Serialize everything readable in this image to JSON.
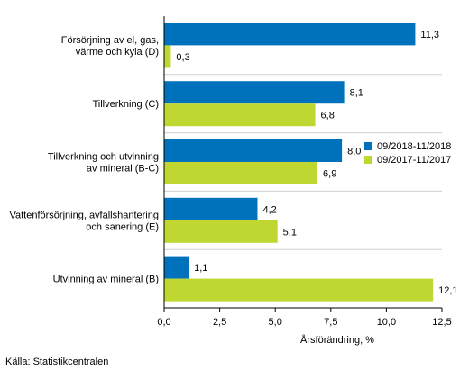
{
  "chart_data": {
    "type": "bar",
    "orientation": "horizontal",
    "categories": [
      [
        "Försörjning av el, gas,",
        "värme och kyla (D)"
      ],
      [
        "Tillverkning (C)"
      ],
      [
        "Tillverkning och utvinning",
        "av mineral (B-C)"
      ],
      [
        "Vattenförsörjning, avfallshantering",
        "och sanering (E)"
      ],
      [
        "Utvinning av mineral (B)"
      ]
    ],
    "series": [
      {
        "name": "09/2018-11/2018",
        "color": "#0072BC",
        "values": [
          11.3,
          8.1,
          8.0,
          4.2,
          1.1
        ],
        "labels": [
          "11,3",
          "8,1",
          "8,0",
          "4,2",
          "1,1"
        ]
      },
      {
        "name": "09/2017-11/2017",
        "color": "#BFD730",
        "values": [
          0.3,
          6.8,
          6.9,
          5.1,
          12.1
        ],
        "labels": [
          "0,3",
          "6,8",
          "6,9",
          "5,1",
          "12,1"
        ]
      }
    ],
    "xlim": [
      0,
      12.5
    ],
    "xticks": [
      0,
      2.5,
      5,
      7.5,
      10,
      12.5
    ],
    "xtick_labels": [
      "0,0",
      "2,5",
      "5,0",
      "7,5",
      "10,0",
      "12,5"
    ],
    "xlabel": "Årsförändring, %",
    "grid": "horizontal separators",
    "legend_position": "right"
  },
  "source": "Källa: Statistikcentralen"
}
